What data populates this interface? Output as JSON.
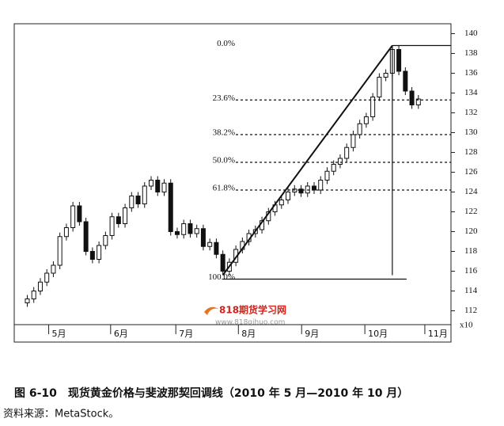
{
  "chart_data": {
    "type": "candlestick",
    "caption": "图 6-10　现货黄金价格与斐波那契回调线（2010 年 5 月—2010 年 10 月）",
    "source": "资料来源：MetaStock。",
    "axis_multiplier": "x10",
    "watermark": {
      "title": "818期货学习网",
      "url": "www.818qihuo.com"
    },
    "ylim": [
      110.6,
      141
    ],
    "yticks": [
      112,
      114,
      116,
      118,
      120,
      122,
      124,
      126,
      128,
      130,
      132,
      134,
      136,
      138,
      140
    ],
    "xlim": [
      -2,
      65
    ],
    "xticks": [
      {
        "value": 4.5,
        "label": "5月"
      },
      {
        "value": 14,
        "label": "6月"
      },
      {
        "value": 24,
        "label": "7月"
      },
      {
        "value": 33.6,
        "label": "8月"
      },
      {
        "value": 43.3,
        "label": "9月"
      },
      {
        "value": 53,
        "label": "10月"
      },
      {
        "value": 62.2,
        "label": "11月"
      }
    ],
    "open": [
      112.8,
      113.2,
      114.0,
      114.9,
      115.8,
      116.6,
      119.5,
      120.4,
      122.6,
      121.0,
      118.0,
      117.2,
      118.6,
      119.6,
      121.5,
      120.8,
      122.4,
      123.6,
      122.8,
      124.6,
      125.2,
      124.0,
      124.9,
      120.0,
      119.7,
      120.8,
      119.8,
      120.3,
      118.5,
      118.9,
      117.7,
      116.0,
      116.9,
      118.2,
      119.0,
      119.8,
      120.2,
      121.1,
      122.0,
      122.7,
      123.2,
      124.0,
      124.3,
      123.9,
      124.6,
      124.2,
      125.2,
      126.1,
      126.8,
      127.4,
      128.5,
      129.8,
      130.9,
      131.6,
      133.6,
      135.6,
      136.0,
      138.4,
      136.2,
      134.2,
      132.8
    ],
    "high": [
      113.6,
      114.4,
      115.3,
      116.2,
      117.0,
      119.9,
      120.8,
      123.0,
      123.0,
      121.4,
      118.4,
      119.0,
      120.0,
      121.9,
      121.9,
      122.8,
      124.0,
      124.0,
      125.0,
      125.6,
      125.6,
      125.3,
      125.3,
      120.4,
      121.2,
      121.2,
      120.7,
      120.7,
      119.3,
      119.3,
      118.1,
      117.3,
      118.6,
      119.4,
      120.2,
      120.6,
      121.5,
      122.4,
      123.1,
      123.6,
      124.4,
      124.7,
      124.7,
      125.0,
      125.0,
      125.6,
      126.5,
      127.2,
      127.8,
      128.9,
      130.2,
      131.3,
      132.0,
      134.0,
      136.0,
      136.4,
      138.8,
      138.8,
      136.6,
      134.6,
      133.8
    ],
    "low": [
      112.4,
      112.8,
      113.6,
      114.5,
      115.4,
      116.2,
      119.1,
      120.0,
      120.6,
      117.6,
      116.8,
      116.8,
      118.2,
      119.2,
      120.4,
      120.4,
      122.0,
      122.4,
      122.4,
      124.2,
      123.6,
      123.6,
      119.6,
      119.3,
      119.3,
      119.4,
      119.4,
      118.1,
      118.1,
      117.3,
      115.6,
      115.6,
      116.5,
      117.8,
      118.6,
      119.4,
      119.8,
      120.7,
      121.6,
      122.3,
      122.8,
      123.6,
      123.5,
      123.5,
      123.8,
      123.8,
      124.8,
      125.7,
      126.4,
      127.0,
      128.1,
      129.4,
      130.5,
      131.2,
      133.2,
      135.2,
      135.6,
      135.8,
      133.8,
      132.4,
      132.4
    ],
    "close": [
      113.2,
      114.0,
      114.9,
      115.8,
      116.6,
      119.5,
      120.4,
      122.6,
      121.0,
      118.0,
      117.2,
      118.6,
      119.6,
      121.5,
      120.8,
      122.4,
      123.6,
      122.8,
      124.6,
      125.2,
      124.0,
      124.9,
      120.0,
      119.7,
      120.8,
      119.8,
      120.3,
      118.5,
      118.9,
      117.7,
      116.0,
      116.9,
      118.2,
      119.0,
      119.8,
      120.2,
      121.1,
      122.0,
      122.7,
      123.2,
      124.0,
      124.3,
      123.9,
      124.6,
      124.2,
      125.2,
      126.1,
      126.8,
      127.4,
      128.5,
      129.8,
      130.9,
      131.6,
      133.6,
      135.6,
      136.0,
      138.4,
      136.2,
      134.2,
      132.8,
      133.4
    ],
    "fib_levels": [
      {
        "label": "0.0%",
        "value": 138.8
      },
      {
        "label": "23.6%",
        "value": 133.3
      },
      {
        "label": "38.2%",
        "value": 129.8
      },
      {
        "label": "50.0%",
        "value": 127.0
      },
      {
        "label": "61.8%",
        "value": 124.2
      },
      {
        "label": "100.0%",
        "value": 115.2
      }
    ],
    "color": "#111111"
  }
}
